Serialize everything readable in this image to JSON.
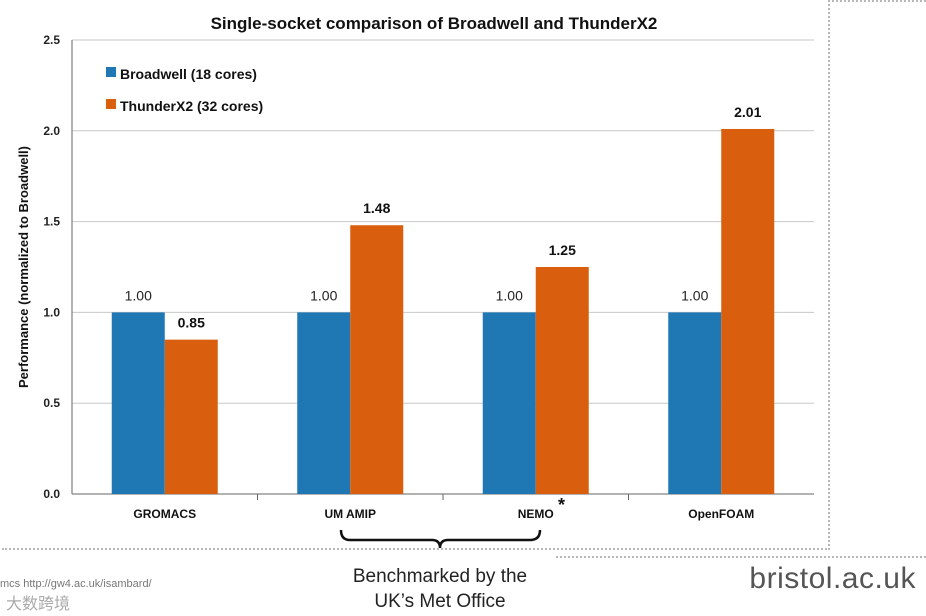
{
  "chart_data": {
    "type": "bar",
    "title": "Single-socket comparison of Broadwell and ThunderX2",
    "ylabel": "Performance (normalized to Broadwell)",
    "xlabel": "",
    "ylim": [
      0,
      2.5
    ],
    "yticks": [
      "0.0",
      "0.5",
      "1.0",
      "1.5",
      "2.0",
      "2.5"
    ],
    "grid": true,
    "legend_position": "top-left",
    "categories": [
      "GROMACS",
      "UM AMIP",
      "NEMO",
      "OpenFOAM"
    ],
    "series": [
      {
        "name": "Broadwell (18 cores)",
        "color": "#1f77b4",
        "values": [
          1.0,
          1.0,
          1.0,
          1.0
        ],
        "labels": [
          "1.00",
          "1.00",
          "1.00",
          "1.00"
        ]
      },
      {
        "name": "ThunderX2 (32 cores)",
        "color": "#d95f0e",
        "values": [
          0.85,
          1.48,
          1.25,
          2.01
        ],
        "labels": [
          "0.85",
          "1.48",
          "1.25",
          "2.01"
        ]
      }
    ],
    "annotations": {
      "nemo_marker": "*"
    }
  },
  "caption": {
    "line1": "Benchmarked by the",
    "line2": "UK’s Met Office"
  },
  "brand": "bristol.ac.uk",
  "footnote": "mcs   http://gw4.ac.uk/isambard/",
  "watermark": "大数跨境"
}
